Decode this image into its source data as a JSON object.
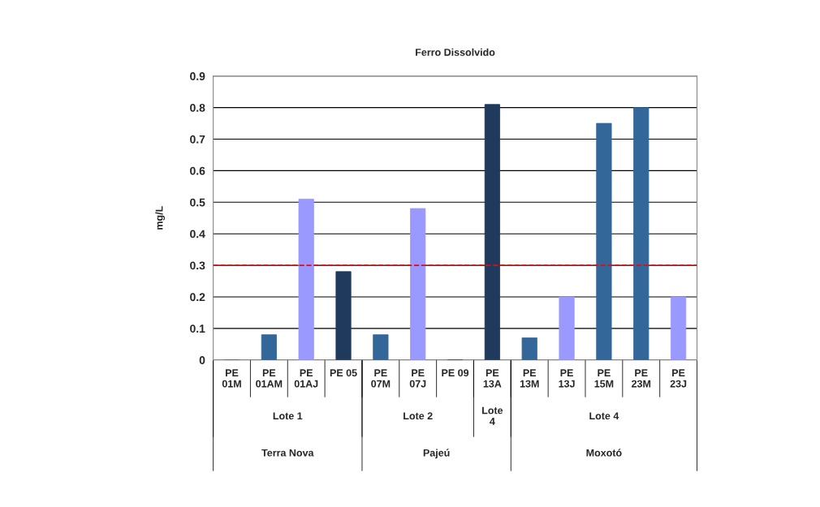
{
  "chart_data": {
    "type": "bar",
    "title": "Ferro Dissolvido",
    "ylabel": "mg/L",
    "categories": [
      "PE\n01M",
      "PE\n01AM",
      "PE\n01AJ",
      "PE 05",
      "PE\n07M",
      "PE\n07J",
      "PE 09",
      "PE\n13A",
      "PE\n13M",
      "PE\n13J",
      "PE\n15M",
      "PE\n23M",
      "PE\n23J"
    ],
    "values": [
      0,
      0.08,
      0.51,
      0.28,
      0.08,
      0.48,
      0,
      0.81,
      0.07,
      0.2,
      0.75,
      0.8,
      0.2
    ],
    "colors": [
      "#336699",
      "#336699",
      "#9999ff",
      "#1f3a5c",
      "#336699",
      "#9999ff",
      "#1f3a5c",
      "#1f3a5c",
      "#336699",
      "#9999ff",
      "#336699",
      "#336699",
      "#9999ff"
    ],
    "ylim": [
      0,
      0.9
    ],
    "yticks": [
      0,
      0.1,
      0.2,
      0.3,
      0.4,
      0.5,
      0.6,
      0.7,
      0.8,
      0.9
    ],
    "grid": "y",
    "ref_lines": [
      {
        "axis": "y",
        "value": 0.3,
        "color": "#ff0000",
        "line_style": "dashed"
      }
    ],
    "annotations": [
      "Lote 1",
      "Lote 2",
      "Lote\n4",
      "Lote 4",
      "Terra Nova",
      "Pajeú",
      "Moxotó"
    ]
  }
}
